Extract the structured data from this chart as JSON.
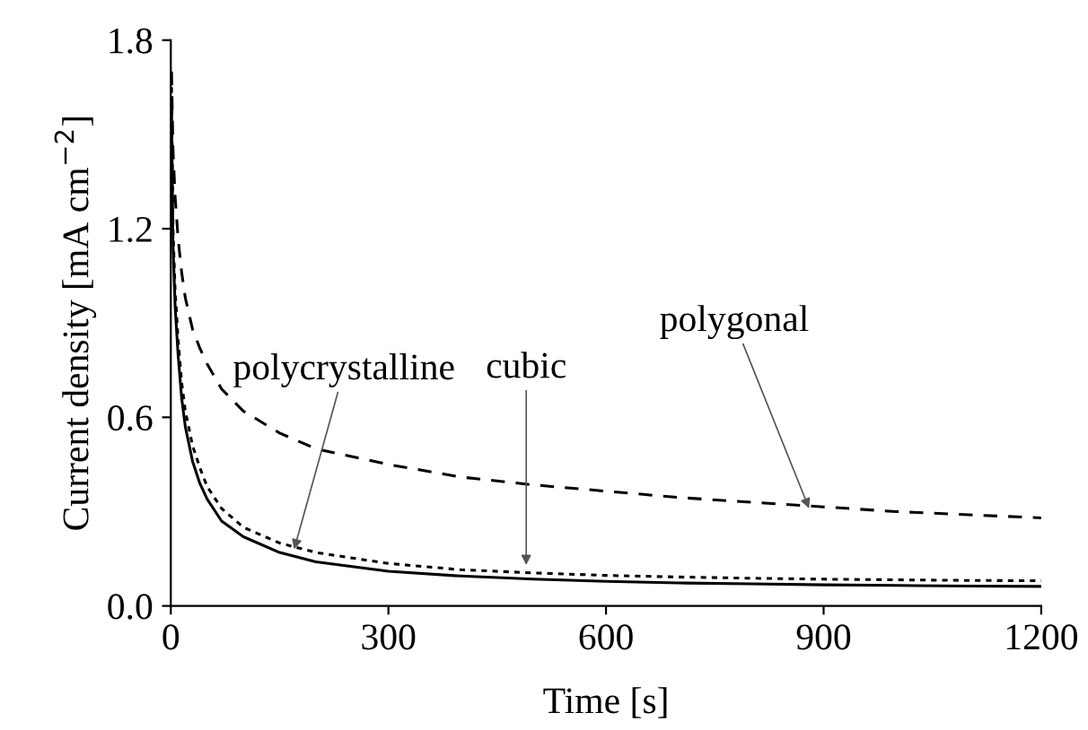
{
  "chart_data": {
    "type": "line",
    "xlabel": "Time [s]",
    "ylabel": "Current density [mA cm$^{−2}$]",
    "xlim": [
      0,
      1200
    ],
    "ylim": [
      0,
      1.8
    ],
    "xticks": [
      0,
      300,
      600,
      900,
      1200
    ],
    "yticks": [
      {
        "value": 0,
        "label": "0.0"
      },
      0.6,
      1.2,
      1.8
    ],
    "grid": false,
    "legend": false,
    "marker": "none",
    "series": [
      {
        "color": "#000000",
        "line_style": "solid",
        "x": [
          1,
          3,
          6,
          10,
          15,
          20,
          30,
          40,
          50,
          70,
          100,
          150,
          200,
          300,
          400,
          500,
          600,
          700,
          800,
          900,
          1000,
          1100,
          1200
        ],
        "values": [
          1.6,
          1.15,
          0.95,
          0.8,
          0.66,
          0.57,
          0.46,
          0.39,
          0.34,
          0.27,
          0.22,
          0.17,
          0.14,
          0.11,
          0.095,
          0.085,
          0.078,
          0.073,
          0.07,
          0.067,
          0.065,
          0.063,
          0.062
        ]
      },
      {
        "color": "#000000",
        "line_style": "dotted",
        "x": [
          1,
          3,
          6,
          10,
          15,
          20,
          30,
          40,
          50,
          70,
          100,
          150,
          200,
          300,
          400,
          500,
          600,
          700,
          800,
          900,
          1000,
          1100,
          1200
        ],
        "values": [
          1.65,
          1.2,
          1.0,
          0.85,
          0.71,
          0.62,
          0.51,
          0.44,
          0.38,
          0.31,
          0.25,
          0.2,
          0.17,
          0.135,
          0.115,
          0.105,
          0.097,
          0.092,
          0.088,
          0.085,
          0.083,
          0.081,
          0.08
        ]
      },
      {
        "color": "#000000",
        "line_style": "dashed",
        "x": [
          1,
          3,
          6,
          10,
          15,
          20,
          30,
          40,
          50,
          70,
          100,
          150,
          200,
          300,
          400,
          500,
          600,
          700,
          800,
          900,
          1000,
          1100,
          1200
        ],
        "values": [
          1.7,
          1.45,
          1.3,
          1.17,
          1.06,
          0.98,
          0.88,
          0.82,
          0.77,
          0.69,
          0.62,
          0.55,
          0.5,
          0.45,
          0.41,
          0.385,
          0.365,
          0.345,
          0.33,
          0.315,
          0.3,
          0.29,
          0.28
        ]
      }
    ],
    "annotations": [
      {
        "text": "polycrystalline",
        "x": 170,
        "y": 0.18
      },
      {
        "text": "cubic",
        "x": 490,
        "y": 0.13
      },
      {
        "text": "polygonal",
        "x": 880,
        "y": 0.31
      }
    ]
  }
}
